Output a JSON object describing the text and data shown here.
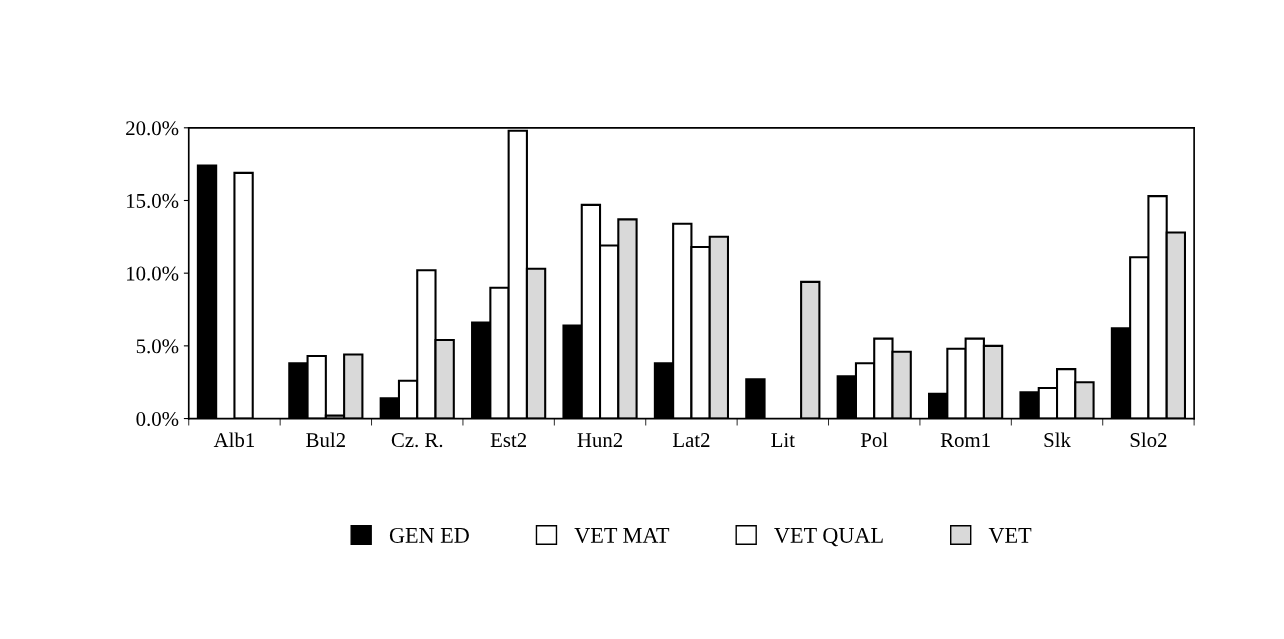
{
  "chart_data": {
    "type": "bar",
    "categories": [
      "Alb1",
      "Bul2",
      "Cz. R.",
      "Est2",
      "Hun2",
      "Lat2",
      "Lit",
      "Pol",
      "Rom1",
      "Slk",
      "Slo2"
    ],
    "series": [
      {
        "name": "GEN ED",
        "color": "#000000",
        "values": [
          17.4,
          3.8,
          1.4,
          6.6,
          6.4,
          3.8,
          2.7,
          2.9,
          1.7,
          1.8,
          6.2
        ]
      },
      {
        "name": "VET MAT",
        "color": "#ffffff",
        "values": [
          null,
          4.3,
          2.6,
          9.0,
          14.7,
          13.4,
          null,
          3.8,
          4.8,
          2.1,
          11.1
        ]
      },
      {
        "name": "VET QUAL",
        "color": "#ffffff",
        "values": [
          16.9,
          0.2,
          10.2,
          19.8,
          11.9,
          11.8,
          null,
          5.5,
          5.5,
          3.4,
          15.3
        ]
      },
      {
        "name": "VET",
        "color": "#d9d9d9",
        "values": [
          null,
          4.4,
          5.4,
          10.3,
          13.7,
          12.5,
          9.4,
          4.6,
          5.0,
          2.5,
          12.8
        ]
      }
    ],
    "ylim": [
      0,
      20
    ],
    "yticks": [
      {
        "value": 0,
        "label": "0.0%"
      },
      {
        "value": 5,
        "label": "5.0%"
      },
      {
        "value": 10,
        "label": "10.0%"
      },
      {
        "value": 15,
        "label": "15.0%"
      },
      {
        "value": 20,
        "label": "20.0%"
      }
    ],
    "grid": false,
    "legend": "bottom"
  }
}
